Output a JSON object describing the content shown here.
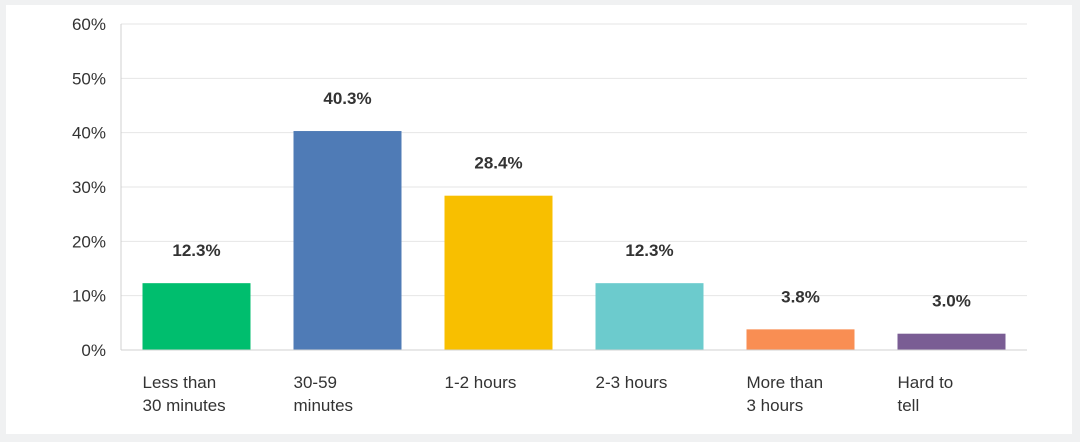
{
  "chart_data": {
    "type": "bar",
    "categories": [
      [
        "Less than",
        "30 minutes"
      ],
      [
        "30-59",
        "minutes"
      ],
      [
        "1-2 hours"
      ],
      [
        "2-3 hours"
      ],
      [
        "More than",
        "3 hours"
      ],
      [
        "Hard to",
        "tell"
      ]
    ],
    "values": [
      12.3,
      40.3,
      28.4,
      12.3,
      3.8,
      3.0
    ],
    "data_labels": [
      "12.3%",
      "40.3%",
      "28.4%",
      "12.3%",
      "3.8%",
      "3.0%"
    ],
    "colors": [
      "#00be6e",
      "#4f7bb6",
      "#f8bf00",
      "#6ccbcd",
      "#f98e53",
      "#7a5d94"
    ],
    "ylim": [
      0,
      60
    ],
    "yticks": [
      0,
      10,
      20,
      30,
      40,
      50,
      60
    ],
    "ytick_labels": [
      "0%",
      "10%",
      "20%",
      "30%",
      "40%",
      "50%",
      "60%"
    ],
    "grid": true,
    "gridColor": "#e6e6e6",
    "axisColor": "#d0d0d0"
  }
}
